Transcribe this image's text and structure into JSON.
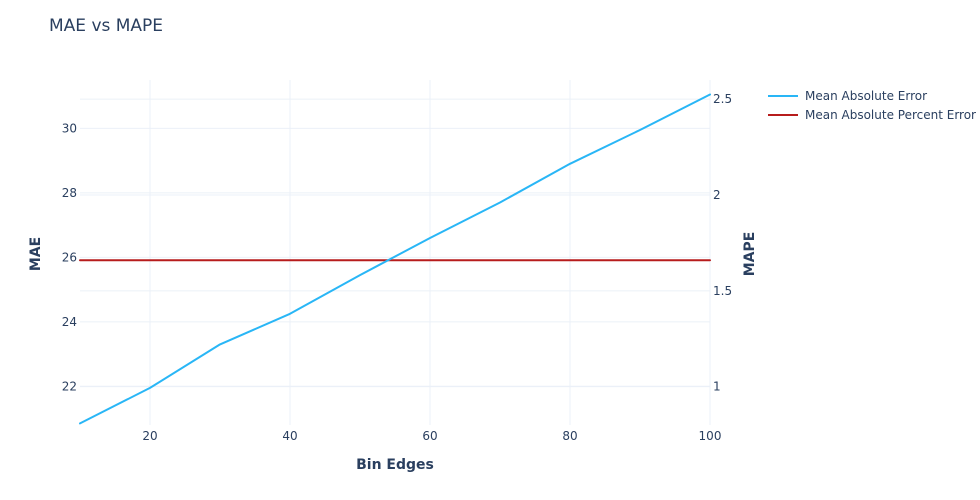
{
  "chart_data": {
    "type": "line",
    "title": "MAE vs MAPE",
    "xlabel": "Bin Edges",
    "ylabel": "MAE",
    "y2label": "MAPE",
    "x": [
      10,
      20,
      30,
      40,
      50,
      60,
      70,
      80,
      90,
      100
    ],
    "xlim": [
      10,
      100
    ],
    "ylim": [
      20.8,
      31.5
    ],
    "y2lim": [
      0.8,
      2.6
    ],
    "xticks": [
      20,
      40,
      60,
      80,
      100
    ],
    "yticks": [
      22,
      24,
      26,
      28,
      30
    ],
    "y2ticks": [
      1,
      1.5,
      2,
      2.5
    ],
    "grid": true,
    "legend_position": "top-right",
    "series": [
      {
        "name": "Mean Absolute Error",
        "axis": "y",
        "color": "#29b6f6",
        "values": [
          20.85,
          21.95,
          23.3,
          24.25,
          25.45,
          26.6,
          27.7,
          28.9,
          29.95,
          31.05
        ]
      },
      {
        "name": "Mean Absolute Percent Error",
        "axis": "y2",
        "color": "#b71c1c",
        "values": [
          1.66,
          1.66,
          1.66,
          1.66,
          1.66,
          1.66,
          1.66,
          1.66,
          1.66,
          1.66
        ]
      }
    ]
  }
}
